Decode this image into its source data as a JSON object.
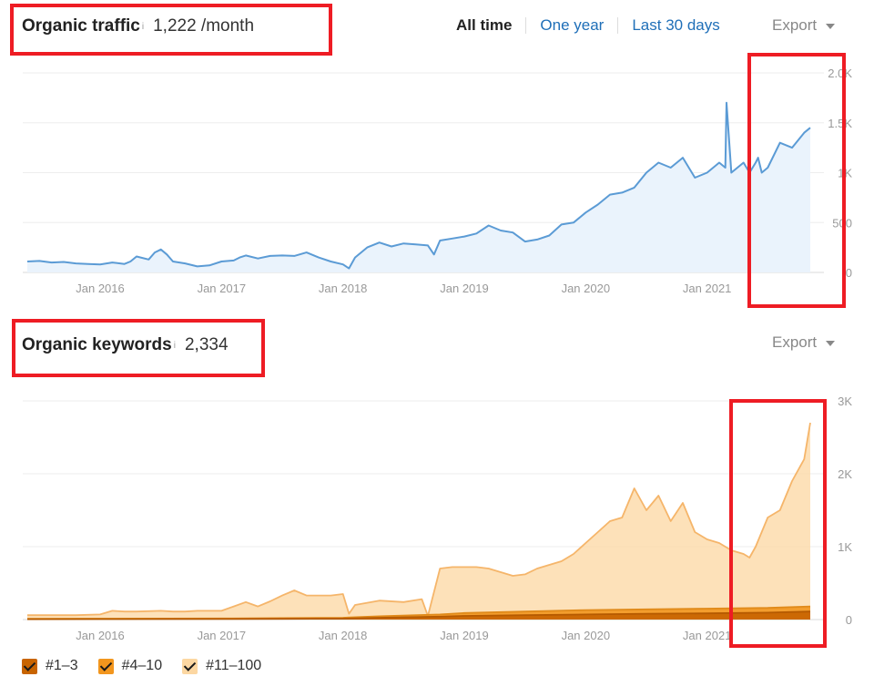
{
  "traffic": {
    "title": "Organic traffic",
    "info": "i",
    "value": "1,222 /month",
    "ranges": [
      "All time",
      "One year",
      "Last 30 days"
    ],
    "active_range": "All time",
    "export_label": "Export"
  },
  "keywords": {
    "title": "Organic keywords",
    "info": "i",
    "value": "2,334",
    "export_label": "Export"
  },
  "legend": [
    {
      "label": "#1–3",
      "color": "#c86400"
    },
    {
      "label": "#4–10",
      "color": "#f2961e"
    },
    {
      "label": "#11–100",
      "color": "#fcd7a2"
    }
  ],
  "chart_data": [
    {
      "type": "area",
      "x_ticks": [
        "Jan 2016",
        "Jan 2017",
        "Jan 2018",
        "Jan 2019",
        "Jan 2020",
        "Jan 2021"
      ],
      "y_ticks": [
        "0",
        "500",
        "1K",
        "1.5K",
        "2.0K"
      ],
      "ylim": [
        0,
        2000
      ],
      "xlim": [
        2015.4,
        2021.85
      ],
      "line_color": "#5b9bd5",
      "fill_color": "#eaf3fc",
      "series": [
        {
          "x": [
            2015.4,
            2015.5,
            2015.6,
            2015.7,
            2015.8,
            2015.9,
            2016.0,
            2016.1,
            2016.2,
            2016.25,
            2016.3,
            2016.4,
            2016.45,
            2016.5,
            2016.55,
            2016.6,
            2016.7,
            2016.8,
            2016.9,
            2017.0,
            2017.1,
            2017.15,
            2017.2,
            2017.3,
            2017.4,
            2017.5,
            2017.6,
            2017.7,
            2017.8,
            2017.9,
            2018.0,
            2018.05,
            2018.1,
            2018.2,
            2018.3,
            2018.4,
            2018.5,
            2018.6,
            2018.7,
            2018.75,
            2018.8,
            2018.9,
            2019.0,
            2019.1,
            2019.2,
            2019.3,
            2019.4,
            2019.5,
            2019.6,
            2019.7,
            2019.8,
            2019.9,
            2020.0,
            2020.1,
            2020.2,
            2020.3,
            2020.4,
            2020.5,
            2020.6,
            2020.7,
            2020.8,
            2020.9,
            2021.0,
            2021.1,
            2021.15,
            2021.16,
            2021.2,
            2021.3,
            2021.35,
            2021.4,
            2021.42,
            2021.45,
            2021.5,
            2021.6,
            2021.7,
            2021.8,
            2021.85
          ],
          "values": [
            110,
            115,
            100,
            105,
            90,
            85,
            80,
            100,
            85,
            110,
            160,
            130,
            200,
            230,
            180,
            110,
            90,
            60,
            70,
            110,
            120,
            150,
            170,
            140,
            165,
            170,
            165,
            200,
            150,
            110,
            80,
            40,
            150,
            250,
            300,
            260,
            290,
            280,
            270,
            180,
            320,
            340,
            360,
            390,
            470,
            420,
            400,
            310,
            330,
            370,
            480,
            500,
            600,
            680,
            780,
            800,
            850,
            1000,
            1100,
            1050,
            1150,
            950,
            1000,
            1100,
            1050,
            1700,
            1000,
            1100,
            1000,
            1100,
            1150,
            1000,
            1050,
            1300,
            1250,
            1400,
            1450
          ]
        }
      ]
    },
    {
      "type": "area",
      "x_ticks": [
        "Jan 2016",
        "Jan 2017",
        "Jan 2018",
        "Jan 2019",
        "Jan 2020",
        "Jan 2021"
      ],
      "y_ticks": [
        "0",
        "1K",
        "2K",
        "3K"
      ],
      "ylim": [
        0,
        3000
      ],
      "xlim": [
        2015.4,
        2021.85
      ],
      "series": [
        {
          "name": "#11–100",
          "color": "#fcd7a2",
          "stroke": "#f5b56a",
          "x": [
            2015.4,
            2015.6,
            2015.8,
            2016.0,
            2016.1,
            2016.2,
            2016.3,
            2016.5,
            2016.6,
            2016.7,
            2016.8,
            2017.0,
            2017.1,
            2017.2,
            2017.3,
            2017.4,
            2017.5,
            2017.6,
            2017.7,
            2017.8,
            2017.9,
            2018.0,
            2018.05,
            2018.1,
            2018.3,
            2018.5,
            2018.65,
            2018.7,
            2018.8,
            2018.9,
            2019.0,
            2019.1,
            2019.2,
            2019.3,
            2019.4,
            2019.5,
            2019.6,
            2019.8,
            2019.9,
            2020.0,
            2020.1,
            2020.2,
            2020.3,
            2020.4,
            2020.5,
            2020.55,
            2020.6,
            2020.7,
            2020.8,
            2020.9,
            2021.0,
            2021.1,
            2021.2,
            2021.3,
            2021.35,
            2021.4,
            2021.5,
            2021.6,
            2021.7,
            2021.8,
            2021.85
          ],
          "values": [
            60,
            60,
            60,
            70,
            120,
            110,
            110,
            120,
            110,
            110,
            120,
            120,
            180,
            240,
            180,
            250,
            330,
            400,
            330,
            330,
            330,
            350,
            80,
            200,
            260,
            240,
            280,
            50,
            700,
            720,
            720,
            720,
            700,
            650,
            600,
            620,
            700,
            800,
            900,
            1050,
            1200,
            1350,
            1400,
            1800,
            1500,
            1600,
            1700,
            1350,
            1600,
            1200,
            1100,
            1050,
            950,
            900,
            850,
            1000,
            1400,
            1500,
            1900,
            2200,
            2700
          ]
        },
        {
          "name": "#4–10",
          "color": "#f2961e",
          "stroke": "#e08a1a",
          "x": [
            2015.4,
            2016.0,
            2017.0,
            2017.5,
            2018.0,
            2018.3,
            2018.8,
            2019.0,
            2019.5,
            2020.0,
            2020.5,
            2021.0,
            2021.5,
            2021.85
          ],
          "values": [
            10,
            12,
            15,
            20,
            25,
            45,
            70,
            90,
            110,
            130,
            140,
            150,
            160,
            180
          ]
        },
        {
          "name": "#1–3",
          "color": "#c86400",
          "stroke": "#b55a00",
          "x": [
            2015.4,
            2016.0,
            2017.0,
            2017.5,
            2018.0,
            2018.3,
            2018.8,
            2019.0,
            2019.5,
            2020.0,
            2020.5,
            2021.0,
            2021.5,
            2021.85
          ],
          "values": [
            5,
            6,
            8,
            10,
            12,
            25,
            40,
            50,
            60,
            70,
            80,
            85,
            95,
            110
          ]
        }
      ]
    }
  ]
}
